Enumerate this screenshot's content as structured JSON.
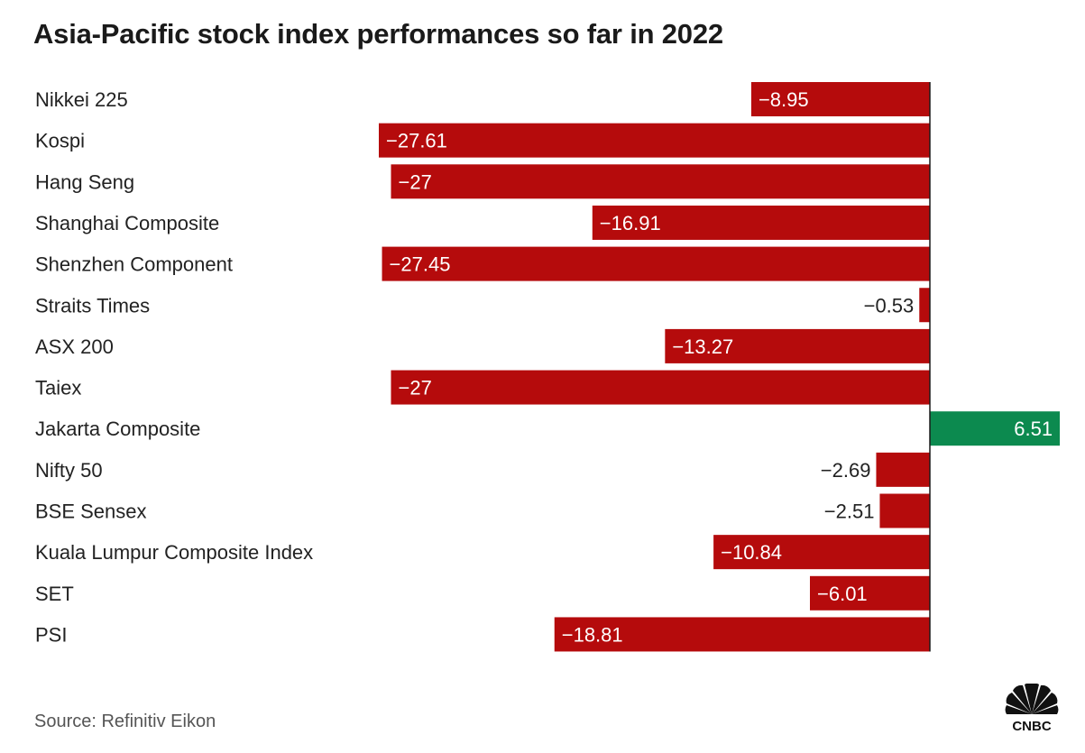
{
  "title": "Asia-Pacific stock index performances so far in 2022",
  "source": "Source: Refinitiv Eikon",
  "logo_text": "CNBC",
  "colors": {
    "negative": "#b50b0c",
    "positive": "#0c8a4f",
    "axis": "#1a1a1a",
    "label": "#222222"
  },
  "chart_data": {
    "type": "bar",
    "orientation": "horizontal",
    "categories": [
      "Nikkei 225",
      "Kospi",
      "Hang Seng",
      "Shanghai Composite",
      "Shenzhen Component",
      "Straits Times",
      "ASX 200",
      "Taiex",
      "Jakarta Composite",
      "Nifty 50",
      "BSE Sensex",
      "Kuala Lumpur Composite Index",
      "SET",
      "PSI"
    ],
    "values": [
      -8.95,
      -27.61,
      -27,
      -16.91,
      -27.45,
      -0.53,
      -13.27,
      -27,
      6.51,
      -2.69,
      -2.51,
      -10.84,
      -6.01,
      -18.81
    ],
    "value_labels": [
      "−8.95",
      "−27.61",
      "−27",
      "−16.91",
      "−27.45",
      "−0.53",
      "−13.27",
      "−27",
      "6.51",
      "−2.69",
      "−2.51",
      "−10.84",
      "−6.01",
      "−18.81"
    ],
    "xlim": [
      -27.61,
      6.51
    ],
    "grid": false,
    "legend": "none"
  }
}
